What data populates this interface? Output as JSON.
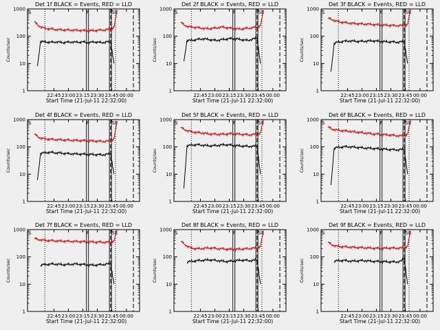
{
  "figure": {
    "background": "#efefef",
    "colors": {
      "events": "#000000",
      "lld": "#e00000",
      "axes": "#000000"
    }
  },
  "chart_data": [
    {
      "type": "line",
      "scale_y": "log",
      "ylim": [
        1,
        1000
      ],
      "title": "Det 1f BLACK = Events, RED = LLD",
      "ylabel": "Counts/sec",
      "xlabel": "Start Time (21-Jul-11 22:32:00)",
      "xticks": [
        "22:45",
        "23:00",
        "23:15",
        "23:30",
        "23:45",
        "00:00"
      ],
      "yticks": [
        "1",
        "10",
        "100",
        "1000"
      ],
      "flags": [
        "S",
        "F",
        "SE"
      ],
      "series": [
        {
          "values": [
            350,
            260,
            220,
            200,
            190,
            185,
            180,
            175,
            172,
            170,
            170,
            168,
            168,
            165,
            165,
            162,
            160,
            160,
            160,
            162,
            165,
            168,
            170,
            175,
            180,
            215,
            900
          ]
        },
        {
          "values": [
            null,
            8,
            65,
            62,
            61,
            60,
            60,
            62,
            60,
            58,
            60,
            60,
            62,
            60,
            60,
            62,
            60,
            58,
            60,
            62,
            60,
            58,
            60,
            62,
            60,
            10,
            null
          ]
        }
      ]
    },
    {
      "type": "line",
      "scale_y": "log",
      "ylim": [
        1,
        1000
      ],
      "title": "Det 2f BLACK = Events, RED = LLD",
      "ylabel": "Counts/sec",
      "xlabel": "Start Time (21-Jul-11 22:32:00)",
      "xticks": [
        "22:45",
        "23:00",
        "23:15",
        "23:30",
        "23:45",
        "00:00"
      ],
      "yticks": [
        "1",
        "10",
        "100",
        "1000"
      ],
      "flags": [
        "S",
        "F",
        "SE"
      ],
      "series": [
        {
          "values": [
            330,
            260,
            230,
            220,
            215,
            210,
            200,
            195,
            190,
            190,
            195,
            200,
            210,
            215,
            210,
            200,
            195,
            190,
            185,
            185,
            190,
            195,
            200,
            210,
            215,
            240,
            900
          ]
        },
        {
          "values": [
            null,
            12,
            70,
            70,
            72,
            75,
            78,
            80,
            78,
            75,
            72,
            70,
            72,
            75,
            78,
            80,
            82,
            80,
            78,
            75,
            72,
            70,
            75,
            80,
            85,
            10,
            null
          ]
        }
      ]
    },
    {
      "type": "line",
      "scale_y": "log",
      "ylim": [
        1,
        1000
      ],
      "title": "Det 3f BLACK = Events, RED = LLD",
      "ylabel": "Counts/sec",
      "xlabel": "Start Time (21-Jul-11 22:32:00)",
      "xticks": [
        "22:45",
        "23:00",
        "23:15",
        "23:30",
        "23:45",
        "00:00"
      ],
      "yticks": [
        "1",
        "10",
        "100",
        "1000"
      ],
      "flags": [
        "S",
        "F",
        "SE"
      ],
      "series": [
        {
          "values": [
            460,
            420,
            380,
            350,
            330,
            320,
            310,
            300,
            295,
            290,
            285,
            280,
            280,
            275,
            270,
            265,
            260,
            258,
            255,
            250,
            248,
            245,
            245,
            248,
            250,
            270,
            950
          ]
        },
        {
          "values": [
            null,
            5,
            55,
            60,
            62,
            65,
            66,
            67,
            66,
            65,
            64,
            65,
            66,
            67,
            68,
            66,
            65,
            64,
            63,
            62,
            62,
            61,
            60,
            62,
            64,
            10,
            null
          ]
        }
      ]
    },
    {
      "type": "line",
      "scale_y": "log",
      "ylim": [
        1,
        1000
      ],
      "title": "Det 4f BLACK = Events, RED = LLD",
      "ylabel": "Counts/sec",
      "xlabel": "Start Time (21-Jul-11 22:32:00)",
      "xticks": [
        "22:45",
        "23:00",
        "23:15",
        "23:30",
        "23:45",
        "00:00"
      ],
      "yticks": [
        "1",
        "10",
        "100",
        "1000"
      ],
      "flags": [
        "S",
        "F",
        "SE"
      ],
      "series": [
        {
          "values": [
            300,
            240,
            210,
            200,
            195,
            190,
            188,
            185,
            182,
            180,
            178,
            178,
            175,
            175,
            172,
            170,
            170,
            168,
            165,
            165,
            162,
            160,
            160,
            162,
            165,
            200,
            850
          ]
        },
        {
          "values": [
            null,
            6,
            58,
            60,
            62,
            63,
            62,
            60,
            60,
            58,
            57,
            56,
            56,
            55,
            55,
            54,
            54,
            53,
            53,
            52,
            52,
            51,
            52,
            54,
            56,
            10,
            null
          ]
        }
      ]
    },
    {
      "type": "line",
      "scale_y": "log",
      "ylim": [
        1,
        1000
      ],
      "title": "Det 5f BLACK = Events, RED = LLD",
      "ylabel": "Counts/sec",
      "xlabel": "Start Time (21-Jul-11 22:32:00)",
      "xticks": [
        "22:45",
        "23:00",
        "23:15",
        "23:30",
        "23:45",
        "00:00"
      ],
      "yticks": [
        "1",
        "10",
        "100",
        "1000"
      ],
      "flags": [
        "S",
        "F",
        "SE"
      ],
      "series": [
        {
          "values": [
            520,
            440,
            400,
            370,
            350,
            340,
            330,
            320,
            310,
            300,
            295,
            292,
            290,
            292,
            295,
            300,
            305,
            300,
            295,
            290,
            285,
            280,
            280,
            285,
            290,
            320,
            1000
          ]
        },
        {
          "values": [
            null,
            3,
            110,
            115,
            118,
            120,
            118,
            115,
            112,
            110,
            110,
            112,
            115,
            118,
            120,
            118,
            115,
            112,
            110,
            108,
            106,
            105,
            104,
            106,
            108,
            10,
            null
          ]
        }
      ]
    },
    {
      "type": "line",
      "scale_y": "log",
      "ylim": [
        1,
        1000
      ],
      "title": "Det 6f BLACK = Events, RED = LLD",
      "ylabel": "Counts/sec",
      "xlabel": "Start Time (21-Jul-11 22:32:00)",
      "xticks": [
        "22:45",
        "23:00",
        "23:15",
        "23:30",
        "23:45",
        "00:00"
      ],
      "yticks": [
        "1",
        "10",
        "100",
        "1000"
      ],
      "flags": [
        "S",
        "F",
        "SE"
      ],
      "series": [
        {
          "values": [
            540,
            470,
            430,
            410,
            400,
            390,
            380,
            370,
            360,
            350,
            340,
            330,
            320,
            310,
            300,
            295,
            290,
            285,
            280,
            275,
            270,
            262,
            255,
            255,
            260,
            290,
            1000
          ]
        },
        {
          "values": [
            null,
            4,
            90,
            95,
            98,
            100,
            102,
            100,
            98,
            96,
            94,
            92,
            90,
            90,
            88,
            86,
            85,
            84,
            82,
            80,
            80,
            78,
            78,
            80,
            82,
            10,
            null
          ]
        }
      ]
    },
    {
      "type": "line",
      "scale_y": "log",
      "ylim": [
        1,
        1000
      ],
      "title": "Det 7f BLACK = Events, RED = LLD",
      "ylabel": "Counts/sec",
      "xlabel": "Start Time (21-Jul-11 22:32:00)",
      "xticks": [
        "22:45",
        "23:00",
        "23:15",
        "23:30",
        "23:45",
        "00:00"
      ],
      "yticks": [
        "1",
        "10",
        "100",
        "1000"
      ],
      "flags": [
        "S",
        "F",
        "SE"
      ],
      "series": [
        {
          "values": [
            480,
            440,
            420,
            410,
            400,
            395,
            390,
            385,
            380,
            378,
            375,
            372,
            370,
            368,
            365,
            362,
            360,
            358,
            355,
            352,
            350,
            348,
            345,
            348,
            350,
            380,
            950
          ]
        },
        {
          "values": [
            null,
            null,
            50,
            52,
            53,
            54,
            55,
            54,
            53,
            52,
            52,
            53,
            54,
            55,
            54,
            53,
            52,
            51,
            50,
            50,
            51,
            52,
            53,
            55,
            57,
            10,
            null
          ]
        }
      ]
    },
    {
      "type": "line",
      "scale_y": "log",
      "ylim": [
        1,
        1000
      ],
      "title": "Det 8f BLACK = Events, RED = LLD",
      "ylabel": "Counts/sec",
      "xlabel": "Start Time (21-Jul-11 22:32:00)",
      "xticks": [
        "22:45",
        "23:00",
        "23:15",
        "23:30",
        "23:45",
        "00:00"
      ],
      "yticks": [
        "1",
        "10",
        "100",
        "1000"
      ],
      "flags": [
        "S",
        "F",
        "SE"
      ],
      "series": [
        {
          "values": [
            380,
            300,
            250,
            220,
            205,
            200,
            200,
            205,
            210,
            212,
            210,
            205,
            200,
            198,
            195,
            192,
            190,
            190,
            192,
            195,
            198,
            200,
            205,
            210,
            215,
            240,
            900
          ]
        },
        {
          "values": [
            null,
            null,
            65,
            68,
            70,
            72,
            74,
            75,
            76,
            78,
            76,
            74,
            72,
            70,
            68,
            68,
            70,
            72,
            74,
            76,
            75,
            74,
            73,
            75,
            78,
            10,
            null
          ]
        }
      ]
    },
    {
      "type": "line",
      "scale_y": "log",
      "ylim": [
        1,
        1000
      ],
      "title": "Det 9f BLACK = Events, RED = LLD",
      "ylabel": "Counts/sec",
      "xlabel": "Start Time (21-Jul-11 22:32:00)",
      "xticks": [
        "22:45",
        "23:00",
        "23:15",
        "23:30",
        "23:45",
        "00:00"
      ],
      "yticks": [
        "1",
        "10",
        "100",
        "1000"
      ],
      "flags": [
        "S",
        "F",
        "SE"
      ],
      "series": [
        {
          "values": [
            350,
            290,
            260,
            245,
            240,
            235,
            230,
            228,
            225,
            222,
            220,
            218,
            215,
            212,
            210,
            208,
            205,
            205,
            208,
            210,
            212,
            210,
            208,
            212,
            215,
            240,
            900
          ]
        },
        {
          "values": [
            null,
            null,
            70,
            72,
            73,
            74,
            72,
            70,
            70,
            71,
            72,
            73,
            72,
            70,
            69,
            68,
            68,
            67,
            67,
            66,
            66,
            65,
            66,
            70,
            90,
            10,
            null
          ]
        }
      ]
    }
  ]
}
